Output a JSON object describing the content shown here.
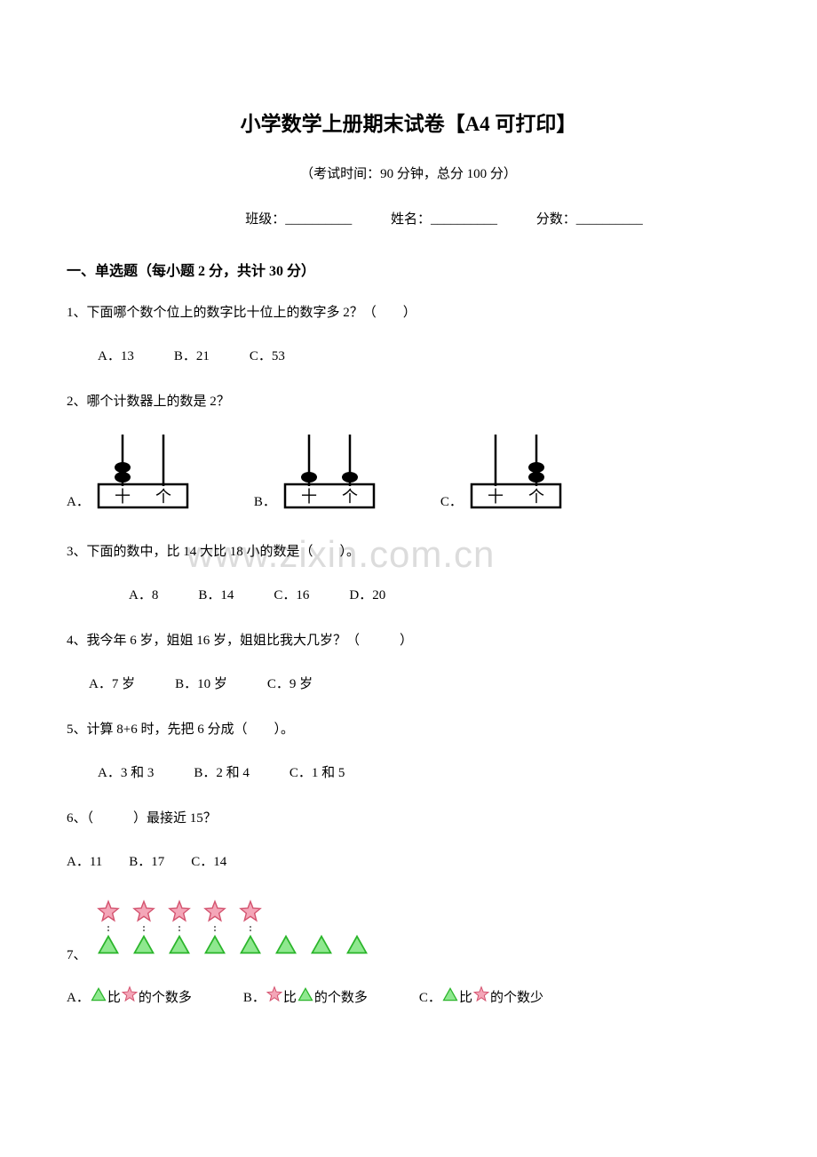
{
  "title": "小学数学上册期末试卷【A4 可打印】",
  "exam_info": "（考试时间：90 分钟，总分 100 分）",
  "fill": {
    "class_label": "班级：__________",
    "name_label": "姓名：__________",
    "score_label": "分数：__________"
  },
  "section1": "一、单选题（每小题 2 分，共计 30 分）",
  "q1": {
    "text": "1、下面哪个数个位上的数字比十位上的数字多 2？（　　）",
    "a": "A．13",
    "b": "B．21",
    "c": "C．53"
  },
  "q2": {
    "text": "2、哪个计数器上的数是 2？",
    "a": "A．",
    "b": "B．",
    "c": "C．"
  },
  "q3": {
    "text": "3、下面的数中，比 14 大比 18 小的数是（　　）。",
    "a": "A．8",
    "b": "B．14",
    "c": "C．16",
    "d": "D．20"
  },
  "q4": {
    "text": "4、我今年 6 岁，姐姐 16 岁，姐姐比我大几岁？（　　　）",
    "a": "A．7 岁",
    "b": "B．10 岁",
    "c": "C．9 岁"
  },
  "q5": {
    "text": "5、计算 8+6 时，先把 6 分成（　　）。",
    "a": "A．3 和 3",
    "b": "B．2 和 4",
    "c": "C．1 和 5"
  },
  "q6": {
    "text": "6、（　　　）最接近 15？",
    "a": "A．11",
    "b": "B．17",
    "c": "C．14"
  },
  "q7": {
    "label": "7、",
    "stars": 5,
    "triangles": 8,
    "a_pre": "A．",
    "a_mid": " 比 ",
    "a_post": " 的个数多",
    "b_pre": "B．",
    "b_mid": " 比 ",
    "b_post": " 的个数多",
    "c_pre": "C．",
    "c_mid": " 比 ",
    "c_post": " 的个数少"
  },
  "watermark": "www.zixin.com.cn",
  "colors": {
    "star_fill": "#f4a6b8",
    "star_stroke": "#d4536f",
    "tri_fill": "#8fe88f",
    "tri_stroke": "#2bb52b",
    "text": "#000000",
    "watermark": "#dcdcdc"
  },
  "abacus": {
    "a": {
      "tens": 2,
      "ones": 0
    },
    "b": {
      "tens": 1,
      "ones": 1
    },
    "c": {
      "tens": 0,
      "ones": 2
    }
  }
}
